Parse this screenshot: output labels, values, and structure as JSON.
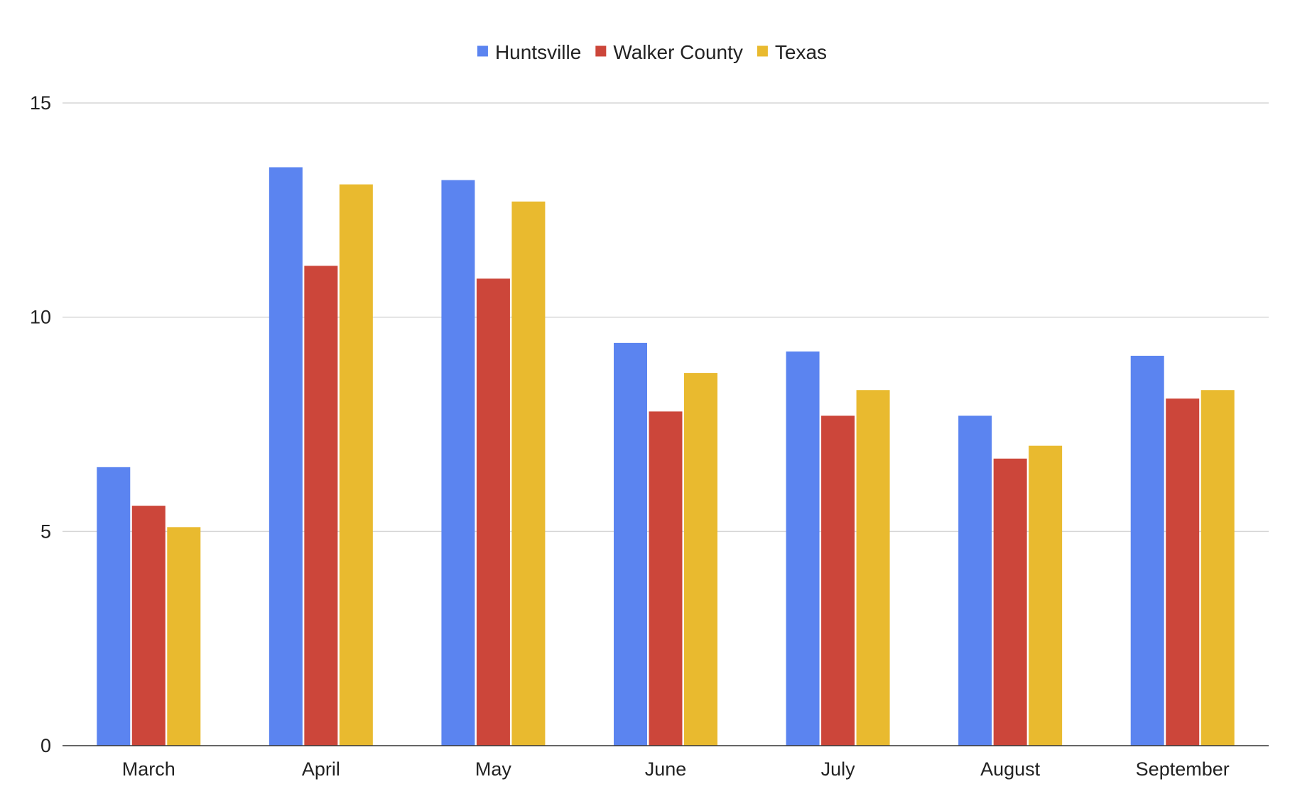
{
  "chart_data": {
    "type": "bar",
    "title": "",
    "xlabel": "",
    "ylabel": "",
    "categories": [
      "March",
      "April",
      "May",
      "June",
      "July",
      "August",
      "September"
    ],
    "series": [
      {
        "name": "Huntsville",
        "color": "#5b84f0",
        "values": [
          6.5,
          13.5,
          13.2,
          9.4,
          9.2,
          7.7,
          9.1
        ]
      },
      {
        "name": "Walker County",
        "color": "#cc463a",
        "values": [
          5.6,
          11.2,
          10.9,
          7.8,
          7.7,
          6.7,
          8.1
        ]
      },
      {
        "name": "Texas",
        "color": "#e9ba2f",
        "values": [
          5.1,
          13.1,
          12.7,
          8.7,
          8.3,
          7.0,
          8.3
        ]
      }
    ],
    "ylim": [
      0,
      15
    ],
    "yticks": [
      0,
      5,
      10,
      15
    ],
    "grid": true,
    "legend_position": "top-center"
  }
}
